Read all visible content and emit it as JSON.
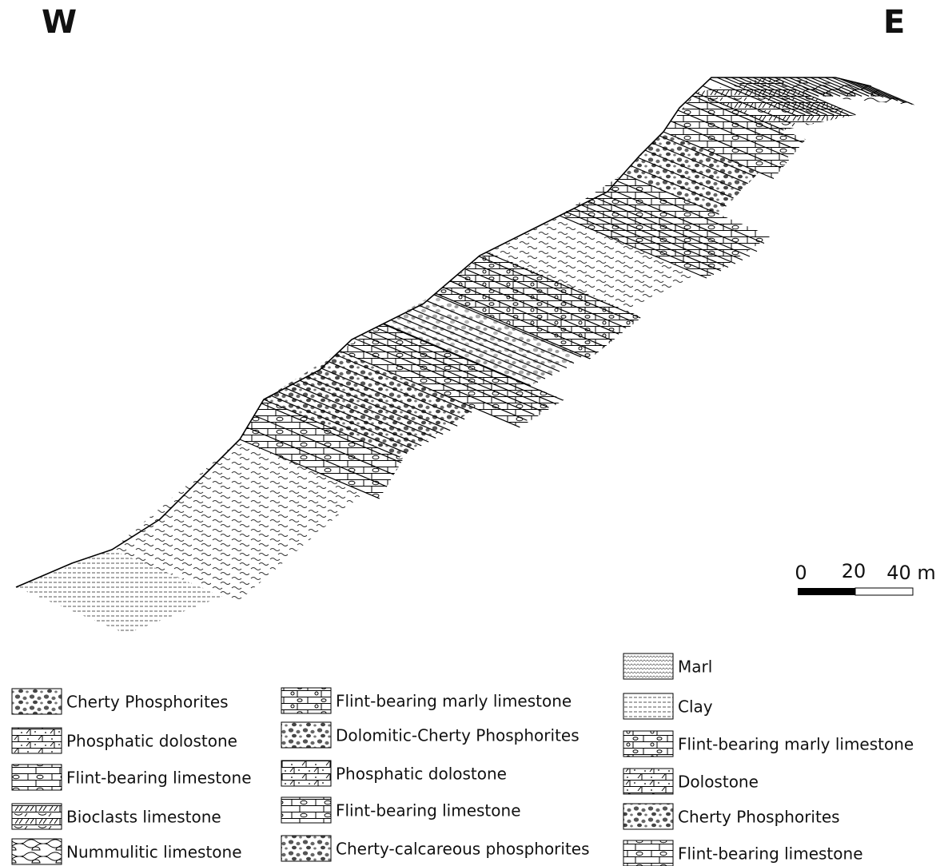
{
  "header": {
    "west": "W",
    "east": "E"
  },
  "scale_bar": {
    "labels": [
      "0",
      "20",
      "40 m"
    ]
  },
  "legend": {
    "columns": [
      [
        "Cherty Phosphorites",
        "Phosphatic dolostone",
        "Flint-bearing limestone",
        "Bioclasts limestone",
        "Nummulitic limestone"
      ],
      [
        "Flint-bearing marly limestone",
        "Dolomitic-Cherty Phosphorites",
        "Phosphatic dolostone",
        "Flint-bearing limestone",
        "Cherty-calcareous phosphorites"
      ],
      [
        "Marl",
        "Clay",
        "Flint-bearing marly limestone",
        "Dolostone",
        "Cherty Phosphorites",
        "Flint-bearing limestone"
      ]
    ]
  }
}
